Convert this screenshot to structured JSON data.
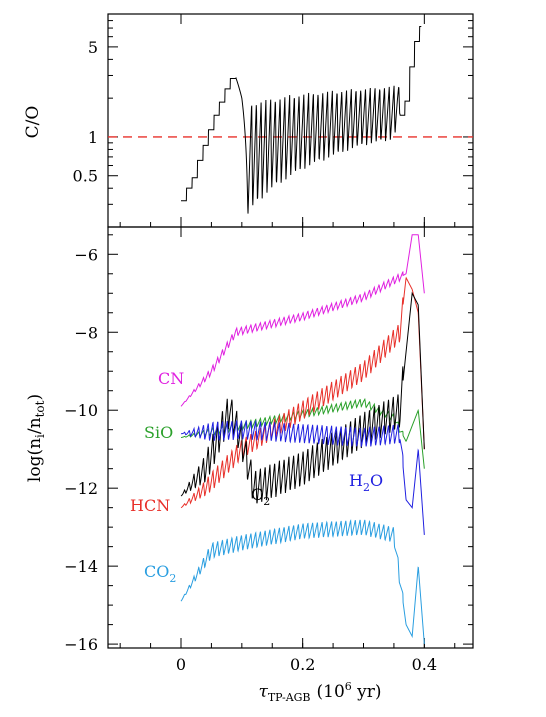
{
  "chart_data": [
    {
      "type": "line",
      "panel": "top",
      "ylabel": "C/O",
      "xlim": [
        -0.12,
        0.48
      ],
      "ylim": [
        0.2,
        9
      ],
      "yscale": "log",
      "yticks": [
        0.5,
        1,
        5
      ],
      "ytick_labels": [
        "0.5",
        "1",
        "5"
      ],
      "reference_line": {
        "y": 1,
        "style": "dashed",
        "color": "#e8302a"
      },
      "series": [
        {
          "color": "#000000",
          "note": "stepwise rise, then oscillating thermal pulses",
          "envelope": [
            [
              0.0,
              0.32
            ],
            [
              0.02,
              0.5
            ],
            [
              0.04,
              0.95
            ],
            [
              0.06,
              1.7
            ],
            [
              0.08,
              2.8
            ],
            [
              0.085,
              3.0
            ],
            [
              0.09,
              2.9
            ],
            [
              0.1,
              2.0
            ],
            [
              0.11,
              0.24
            ],
            [
              0.13,
              0.32
            ],
            [
              0.2,
              0.55
            ],
            [
              0.3,
              0.85
            ],
            [
              0.35,
              0.95
            ],
            [
              0.37,
              2.0
            ],
            [
              0.38,
              4.5
            ],
            [
              0.39,
              7.0
            ],
            [
              0.395,
              7.5
            ]
          ],
          "pulse_maxima": [
            [
              0.12,
              1.9
            ],
            [
              0.2,
              2.2
            ],
            [
              0.3,
              2.4
            ],
            [
              0.35,
              2.5
            ]
          ]
        }
      ]
    },
    {
      "type": "line",
      "panel": "bottom",
      "ylabel": "log(n_i/n_tot)",
      "xlabel": "τ_TP-AGB (10^6 yr)",
      "xlim": [
        -0.12,
        0.48
      ],
      "ylim": [
        -16.1,
        -5.3
      ],
      "xticks": [
        0,
        0.2,
        0.4
      ],
      "xtick_labels": [
        "0",
        "0.2",
        "0.4"
      ],
      "yticks": [
        -16,
        -14,
        -12,
        -10,
        -8,
        -6
      ],
      "ytick_labels": [
        "−16",
        "−14",
        "−12",
        "−10",
        "−8",
        "−6"
      ],
      "series": [
        {
          "name": "CN",
          "color": "#e020e0",
          "amp": 0.2,
          "points": [
            [
              0.0,
              -9.9
            ],
            [
              0.05,
              -9.0
            ],
            [
              0.09,
              -8.0
            ],
            [
              0.2,
              -7.6
            ],
            [
              0.3,
              -7.1
            ],
            [
              0.37,
              -6.5
            ],
            [
              0.38,
              -5.5
            ],
            [
              0.39,
              -5.5
            ],
            [
              0.4,
              -7.0
            ]
          ]
        },
        {
          "name": "SiO",
          "color": "#2aa02a",
          "amp": 0.2,
          "points": [
            [
              0.0,
              -10.7
            ],
            [
              0.1,
              -10.4
            ],
            [
              0.2,
              -10.1
            ],
            [
              0.3,
              -9.8
            ],
            [
              0.35,
              -10.2
            ],
            [
              0.37,
              -10.8
            ],
            [
              0.39,
              -10.0
            ],
            [
              0.4,
              -11.5
            ]
          ]
        },
        {
          "name": "HCN",
          "color": "#e8302a",
          "amp": 0.5,
          "points": [
            [
              0.0,
              -12.5
            ],
            [
              0.04,
              -12.0
            ],
            [
              0.1,
              -11.0
            ],
            [
              0.2,
              -10.0
            ],
            [
              0.3,
              -9.0
            ],
            [
              0.36,
              -8.0
            ],
            [
              0.37,
              -6.6
            ],
            [
              0.38,
              -6.9
            ],
            [
              0.39,
              -7.5
            ],
            [
              0.4,
              -11.0
            ]
          ]
        },
        {
          "name": "C2",
          "color": "#000000",
          "amp": 0.9,
          "points": [
            [
              0.0,
              -12.2
            ],
            [
              0.04,
              -11.5
            ],
            [
              0.08,
              -10.0
            ],
            [
              0.1,
              -10.8
            ],
            [
              0.12,
              -12.0
            ],
            [
              0.2,
              -11.5
            ],
            [
              0.3,
              -10.5
            ],
            [
              0.36,
              -10.0
            ],
            [
              0.38,
              -7.0
            ],
            [
              0.39,
              -7.3
            ],
            [
              0.4,
              -11.0
            ]
          ]
        },
        {
          "name": "H2O",
          "color": "#2020e0",
          "amp": 0.5,
          "points": [
            [
              0.0,
              -10.6
            ],
            [
              0.1,
              -10.5
            ],
            [
              0.2,
              -10.6
            ],
            [
              0.3,
              -10.7
            ],
            [
              0.36,
              -10.6
            ],
            [
              0.37,
              -12.3
            ],
            [
              0.38,
              -12.5
            ],
            [
              0.39,
              -11.0
            ],
            [
              0.4,
              -13.2
            ]
          ]
        },
        {
          "name": "CO2",
          "color": "#2a9ee0",
          "amp": 0.4,
          "points": [
            [
              0.0,
              -14.9
            ],
            [
              0.05,
              -13.6
            ],
            [
              0.1,
              -13.4
            ],
            [
              0.2,
              -13.1
            ],
            [
              0.3,
              -13.0
            ],
            [
              0.35,
              -13.2
            ],
            [
              0.37,
              -15.5
            ],
            [
              0.38,
              -15.8
            ],
            [
              0.39,
              -14.0
            ],
            [
              0.4,
              -16.0
            ]
          ]
        }
      ]
    }
  ],
  "labels": {
    "top_ylabel": "C/O",
    "bottom_ylabel": "log(n",
    "bottom_ylabel_sub1": "i",
    "bottom_ylabel_mid": "/n",
    "bottom_ylabel_sub2": "tot",
    "bottom_ylabel_end": ")",
    "xlabel_tau": "τ",
    "xlabel_sub": "TP-AGB",
    "xlabel_unit": "(10",
    "xlabel_exp": "6",
    "xlabel_unit_end": " yr)",
    "cn": "CN",
    "sio": "SiO",
    "hcn": "HCN",
    "c": "C",
    "c_sub": "2",
    "h": "H",
    "h_sub": "2",
    "h_end": "O",
    "co": "CO",
    "co_sub": "2"
  },
  "colors": {
    "cn": "#e020e0",
    "sio": "#2aa02a",
    "hcn": "#e8302a",
    "c2": "#000000",
    "h2o": "#2020e0",
    "co2": "#2a9ee0",
    "ref": "#e8302a"
  }
}
